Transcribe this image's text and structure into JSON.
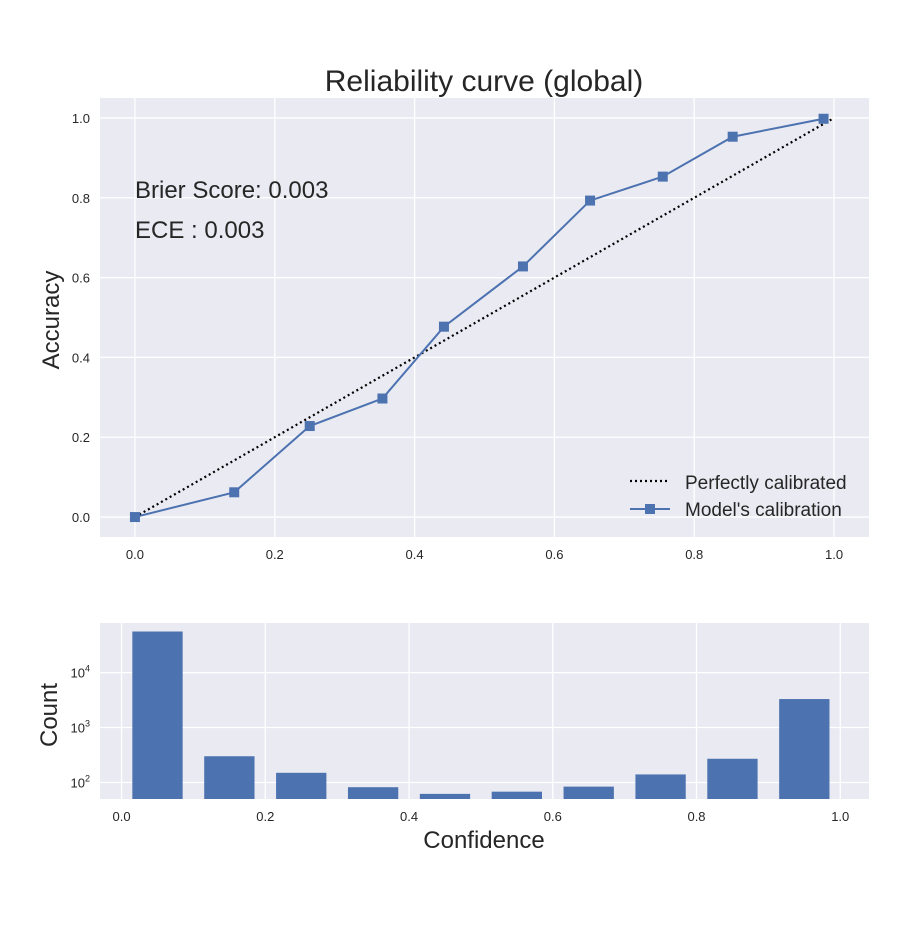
{
  "chart_data": [
    {
      "type": "line",
      "title": "Reliability curve (global)",
      "xlabel": "",
      "ylabel": "Accuracy",
      "xlim": [
        -0.05,
        1.05
      ],
      "ylim": [
        -0.05,
        1.05
      ],
      "xticks": [
        "0.0",
        "0.2",
        "0.4",
        "0.6",
        "0.8",
        "1.0"
      ],
      "yticks": [
        "0.0",
        "0.2",
        "0.4",
        "0.6",
        "0.8",
        "1.0"
      ],
      "grid": true,
      "legend_position": "bottom-right",
      "annotations": [
        "Brier Score: 0.003",
        "ECE : 0.003"
      ],
      "series": [
        {
          "name": "Perfectly calibrated",
          "style": "dotted",
          "color": "#000000",
          "x": [
            0.0,
            1.0
          ],
          "y": [
            0.0,
            1.0
          ]
        },
        {
          "name": "Model's calibration",
          "style": "solid-square-markers",
          "color": "#4c72b0",
          "x": [
            0.0,
            0.142,
            0.25,
            0.354,
            0.442,
            0.555,
            0.651,
            0.755,
            0.855,
            0.985
          ],
          "y": [
            0.0,
            0.062,
            0.228,
            0.297,
            0.477,
            0.628,
            0.793,
            0.853,
            0.953,
            0.998
          ]
        }
      ]
    },
    {
      "type": "bar",
      "title": "",
      "xlabel": "Confidence",
      "ylabel": "Count",
      "yscale": "log",
      "xlim": [
        -0.03,
        1.04
      ],
      "ylim": [
        50,
        80000
      ],
      "xticks": [
        "0.0",
        "0.2",
        "0.4",
        "0.6",
        "0.8",
        "1.0"
      ],
      "yticks": [
        {
          "base": "10",
          "exp": "2",
          "value": 100
        },
        {
          "base": "10",
          "exp": "3",
          "value": 1000
        },
        {
          "base": "10",
          "exp": "4",
          "value": 10000
        }
      ],
      "grid": true,
      "color": "#4c72b0",
      "bin_width": 0.07,
      "bin_centers": [
        0.05,
        0.15,
        0.25,
        0.35,
        0.45,
        0.55,
        0.65,
        0.75,
        0.85,
        0.95
      ],
      "values": [
        56000,
        300,
        150,
        82,
        62,
        68,
        84,
        140,
        270,
        3300
      ]
    }
  ]
}
